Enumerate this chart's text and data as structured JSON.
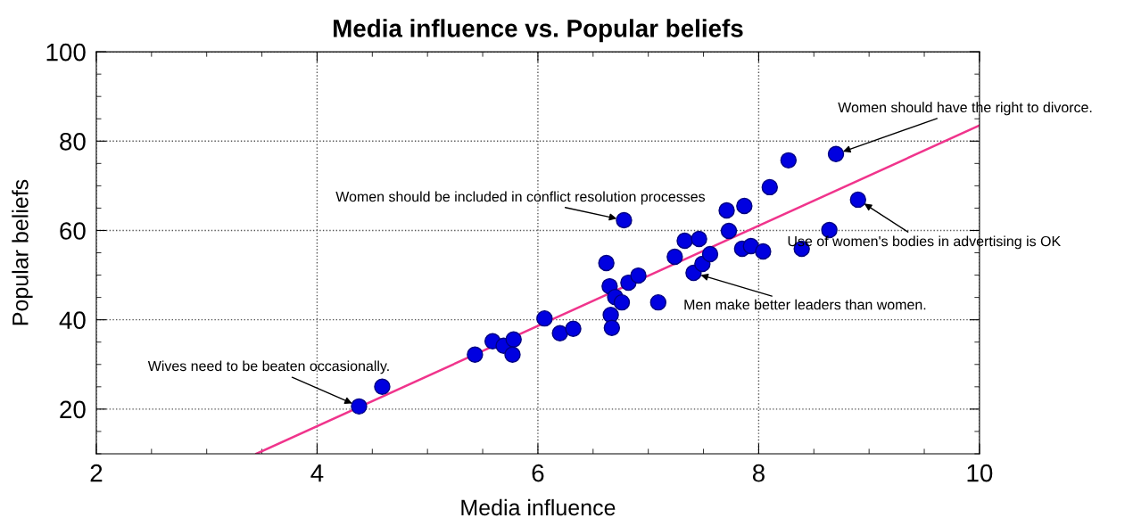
{
  "chart_data": {
    "type": "scatter",
    "title": "Media influence vs. Popular beliefs",
    "xlabel": "Media influence",
    "ylabel": "Popular beliefs",
    "xlim": [
      2,
      10
    ],
    "ylim": [
      10,
      100
    ],
    "xticks": [
      2,
      4,
      6,
      8,
      10
    ],
    "yticks": [
      20,
      40,
      60,
      80,
      100
    ],
    "grid": true,
    "marker": "circle",
    "series": [
      {
        "type": "scatter",
        "color": "#0000e0",
        "x": [
          4.38,
          4.59,
          5.43,
          5.59,
          5.69,
          5.78,
          5.77,
          6.06,
          6.2,
          6.32,
          6.62,
          6.65,
          6.66,
          6.67,
          6.7,
          6.76,
          6.78,
          6.82,
          6.91,
          7.09,
          7.24,
          7.33,
          7.46,
          7.41,
          7.49,
          7.56,
          7.71,
          7.73,
          7.87,
          7.85,
          7.93,
          8.04,
          8.1,
          8.27,
          8.7,
          8.64,
          8.39,
          8.9
        ],
        "values": [
          20.6,
          25,
          32.2,
          35.2,
          34.2,
          35.6,
          32.2,
          40.3,
          37,
          38,
          52.7,
          47.5,
          41.1,
          38.2,
          45.1,
          43.9,
          62.3,
          48.3,
          49.9,
          43.9,
          54.1,
          57.7,
          58.1,
          50.5,
          52.5,
          54.7,
          64.5,
          59.9,
          65.5,
          55.9,
          56.5,
          55.3,
          69.7,
          75.7,
          77.1,
          60.1,
          55.9,
          66.9
        ]
      },
      {
        "type": "line",
        "color": "#f0348c",
        "marker": "none",
        "x": [
          3.45,
          10
        ],
        "values": [
          10,
          83.5
        ]
      }
    ],
    "annotations": [
      {
        "text": "Wives need to be beaten occasionally.",
        "x": 4.38,
        "y": 20.6
      },
      {
        "text": "Women should be included in conflict resolution processes",
        "x": 6.78,
        "y": 62.3
      },
      {
        "text": "Women should have the right to divorce.",
        "x": 8.7,
        "y": 77.1
      },
      {
        "text": "Use of women's bodies in advertising is OK",
        "x": 8.9,
        "y": 66.9
      },
      {
        "text": "Men make better leaders than women.",
        "x": 7.41,
        "y": 50.5
      }
    ]
  }
}
